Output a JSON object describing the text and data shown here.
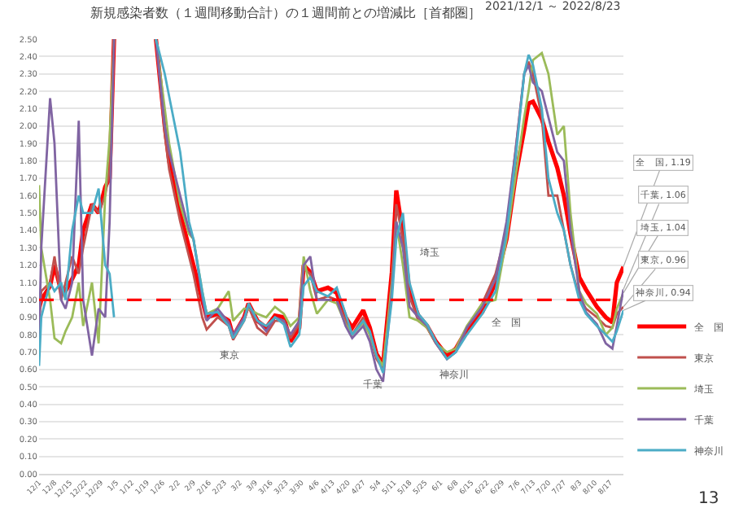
{
  "chart_data": {
    "type": "line",
    "title": "新規感染者数（１週間移動合計）の１週間前との増減比［首都圏］",
    "subtitle": "2021/12/1 ～ 2022/8/23",
    "x": [
      "2021-12-01",
      "2021-12-02",
      "2021-12-06",
      "2021-12-08",
      "2021-12-11",
      "2021-12-13",
      "2021-12-16",
      "2021-12-19",
      "2021-12-21",
      "2021-12-25",
      "2021-12-28",
      "2021-12-31",
      "2022-01-02",
      "2022-01-04",
      "2022-01-14",
      "2022-01-23",
      "2022-01-27",
      "2022-01-29",
      "2022-02-03",
      "2022-02-07",
      "2022-02-09",
      "2022-02-13",
      "2022-02-15",
      "2022-02-20",
      "2022-02-25",
      "2022-02-27",
      "2022-03-04",
      "2022-03-06",
      "2022-03-10",
      "2022-03-14",
      "2022-03-18",
      "2022-03-22",
      "2022-03-25",
      "2022-03-29",
      "2022-03-31",
      "2022-04-03",
      "2022-04-06",
      "2022-04-11",
      "2022-04-15",
      "2022-04-19",
      "2022-04-22",
      "2022-04-27",
      "2022-04-30",
      "2022-05-03",
      "2022-05-06",
      "2022-05-10",
      "2022-05-12",
      "2022-05-15",
      "2022-05-18",
      "2022-05-22",
      "2022-05-26",
      "2022-05-30",
      "2022-06-04",
      "2022-06-08",
      "2022-06-13",
      "2022-06-20",
      "2022-06-26",
      "2022-07-01",
      "2022-07-05",
      "2022-07-09",
      "2022-07-11",
      "2022-07-13",
      "2022-07-17",
      "2022-07-20",
      "2022-07-24",
      "2022-07-27",
      "2022-07-30",
      "2022-08-03",
      "2022-08-06",
      "2022-08-11",
      "2022-08-15",
      "2022-08-18",
      "2022-08-20",
      "2022-08-23"
    ],
    "xlim": [
      "2021-12-01",
      "2022-08-23"
    ],
    "xticks": [
      {
        "value": "2021-12-01",
        "label": "12/1"
      },
      {
        "value": "2021-12-08",
        "label": "12/8"
      },
      {
        "value": "2021-12-15",
        "label": "12/15"
      },
      {
        "value": "2021-12-22",
        "label": "12/22"
      },
      {
        "value": "2021-12-29",
        "label": "12/29"
      },
      {
        "value": "2022-01-05",
        "label": "1/5"
      },
      {
        "value": "2022-01-12",
        "label": "1/12"
      },
      {
        "value": "2022-01-19",
        "label": "1/19"
      },
      {
        "value": "2022-01-26",
        "label": "1/26"
      },
      {
        "value": "2022-02-02",
        "label": "2/2"
      },
      {
        "value": "2022-02-09",
        "label": "2/9"
      },
      {
        "value": "2022-02-16",
        "label": "2/16"
      },
      {
        "value": "2022-02-23",
        "label": "2/23"
      },
      {
        "value": "2022-03-02",
        "label": "3/2"
      },
      {
        "value": "2022-03-09",
        "label": "3/9"
      },
      {
        "value": "2022-03-16",
        "label": "3/16"
      },
      {
        "value": "2022-03-23",
        "label": "3/23"
      },
      {
        "value": "2022-03-30",
        "label": "3/30"
      },
      {
        "value": "2022-04-06",
        "label": "4/6"
      },
      {
        "value": "2022-04-13",
        "label": "4/13"
      },
      {
        "value": "2022-04-20",
        "label": "4/20"
      },
      {
        "value": "2022-04-27",
        "label": "4/27"
      },
      {
        "value": "2022-05-04",
        "label": "5/4"
      },
      {
        "value": "2022-05-11",
        "label": "5/11"
      },
      {
        "value": "2022-05-18",
        "label": "5/18"
      },
      {
        "value": "2022-05-25",
        "label": "5/25"
      },
      {
        "value": "2022-06-01",
        "label": "6/1"
      },
      {
        "value": "2022-06-08",
        "label": "6/8"
      },
      {
        "value": "2022-06-15",
        "label": "6/15"
      },
      {
        "value": "2022-06-22",
        "label": "6/22"
      },
      {
        "value": "2022-06-29",
        "label": "6/29"
      },
      {
        "value": "2022-07-06",
        "label": "7/6"
      },
      {
        "value": "2022-07-13",
        "label": "7/13"
      },
      {
        "value": "2022-07-20",
        "label": "7/20"
      },
      {
        "value": "2022-07-27",
        "label": "7/27"
      },
      {
        "value": "2022-08-03",
        "label": "8/3"
      },
      {
        "value": "2022-08-10",
        "label": "8/10"
      },
      {
        "value": "2022-08-17",
        "label": "8/17"
      }
    ],
    "ylim": [
      0,
      2.5
    ],
    "yticks": [
      {
        "value": 0,
        "label": "0.00"
      },
      {
        "value": 0.1,
        "label": "0.10"
      },
      {
        "value": 0.2,
        "label": "0.20"
      },
      {
        "value": 0.3,
        "label": "0.30"
      },
      {
        "value": 0.4,
        "label": "0.40"
      },
      {
        "value": 0.5,
        "label": "0.50"
      },
      {
        "value": 0.6,
        "label": "0.60"
      },
      {
        "value": 0.7,
        "label": "0.70"
      },
      {
        "value": 0.8,
        "label": "0.80"
      },
      {
        "value": 0.9,
        "label": "0.90"
      },
      {
        "value": 1,
        "label": "1.00"
      },
      {
        "value": 1.1,
        "label": "1.10"
      },
      {
        "value": 1.2,
        "label": "1.20"
      },
      {
        "value": 1.3,
        "label": "1.30"
      },
      {
        "value": 1.4,
        "label": "1.40"
      },
      {
        "value": 1.5,
        "label": "1.50"
      },
      {
        "value": 1.6,
        "label": "1.60"
      },
      {
        "value": 1.7,
        "label": "1.70"
      },
      {
        "value": 1.8,
        "label": "1.80"
      },
      {
        "value": 1.9,
        "label": "1.90"
      },
      {
        "value": 2,
        "label": "2.00"
      },
      {
        "value": 2.1,
        "label": "2.10"
      },
      {
        "value": 2.2,
        "label": "2.20"
      },
      {
        "value": 2.3,
        "label": "2.30"
      },
      {
        "value": 2.4,
        "label": "2.40"
      },
      {
        "value": 2.5,
        "label": "2.50"
      }
    ],
    "grid": "y",
    "legend": "bottom right",
    "series": [
      {
        "name": "全　国",
        "color": "#ff0000",
        "values": [
          0.95,
          1.0,
          1.08,
          1.2,
          1.05,
          1.05,
          1.12,
          1.2,
          1.4,
          1.55,
          1.5,
          1.65,
          1.7,
          2.5,
          null,
          2.5,
          2.0,
          1.8,
          1.5,
          1.3,
          1.2,
          1.0,
          0.9,
          0.92,
          0.88,
          0.79,
          0.9,
          0.98,
          0.88,
          0.84,
          0.91,
          0.9,
          0.76,
          0.84,
          1.2,
          1.16,
          1.05,
          1.07,
          1.04,
          0.9,
          0.84,
          0.94,
          0.84,
          0.69,
          0.63,
          1.16,
          1.63,
          1.38,
          1.04,
          0.91,
          0.85,
          0.76,
          0.68,
          0.72,
          0.83,
          0.93,
          1.1,
          1.35,
          1.7,
          1.98,
          2.13,
          2.14,
          2.04,
          1.91,
          1.76,
          1.6,
          1.38,
          1.13,
          1.06,
          0.96,
          0.9,
          0.87,
          1.1,
          1.19
        ]
      },
      {
        "name": "東京",
        "color": "#c0504d",
        "values": [
          0.85,
          1.05,
          1.1,
          1.25,
          1.0,
          1.1,
          1.25,
          1.15,
          1.3,
          1.55,
          1.5,
          1.6,
          1.75,
          2.5,
          null,
          2.5,
          1.95,
          1.75,
          1.45,
          1.25,
          1.15,
          0.9,
          0.83,
          0.9,
          0.85,
          0.77,
          0.88,
          0.96,
          0.84,
          0.8,
          0.88,
          0.88,
          0.78,
          0.86,
          1.18,
          1.15,
          1.0,
          1.02,
          1.0,
          0.88,
          0.8,
          0.9,
          0.8,
          0.66,
          0.6,
          1.1,
          1.55,
          1.35,
          1.02,
          0.88,
          0.84,
          0.75,
          0.66,
          0.7,
          0.84,
          0.98,
          1.15,
          1.4,
          1.85,
          2.3,
          2.37,
          2.3,
          2.05,
          1.6,
          1.6,
          1.4,
          1.2,
          1.02,
          0.95,
          0.9,
          0.85,
          0.84,
          0.92,
          0.96
        ]
      },
      {
        "name": "埼玉",
        "color": "#9bbb59",
        "values": [
          1.66,
          1.3,
          1.0,
          0.78,
          0.75,
          0.82,
          0.9,
          1.1,
          0.85,
          1.1,
          0.75,
          1.6,
          1.93,
          2.5,
          null,
          2.5,
          2.1,
          1.9,
          1.55,
          1.38,
          1.35,
          1.05,
          0.92,
          0.95,
          1.05,
          0.88,
          0.95,
          0.95,
          0.92,
          0.9,
          0.96,
          0.92,
          0.85,
          0.9,
          1.25,
          1.05,
          0.92,
          1.0,
          0.98,
          0.86,
          0.8,
          0.87,
          0.8,
          0.68,
          0.62,
          1.1,
          1.45,
          1.2,
          0.9,
          0.88,
          0.84,
          0.75,
          0.7,
          0.72,
          0.85,
          0.98,
          1.0,
          1.35,
          1.7,
          2.05,
          2.2,
          2.38,
          2.42,
          2.3,
          1.95,
          2.0,
          1.5,
          1.05,
          0.98,
          0.92,
          0.8,
          0.84,
          0.95,
          1.04
        ]
      },
      {
        "name": "千葉",
        "color": "#8064a2",
        "values": [
          0.75,
          1.3,
          2.16,
          1.9,
          1.0,
          0.95,
          1.1,
          2.03,
          1.0,
          0.68,
          0.95,
          0.9,
          1.45,
          2.5,
          null,
          2.5,
          2.0,
          1.85,
          1.6,
          1.4,
          1.35,
          1.02,
          0.88,
          0.95,
          0.87,
          0.8,
          0.9,
          0.97,
          0.88,
          0.82,
          0.9,
          0.88,
          0.8,
          0.88,
          1.2,
          1.25,
          1.0,
          1.0,
          1.0,
          0.85,
          0.78,
          0.85,
          0.76,
          0.6,
          0.53,
          1.05,
          1.45,
          1.3,
          0.96,
          0.9,
          0.85,
          0.75,
          0.66,
          0.7,
          0.84,
          0.96,
          1.12,
          1.45,
          1.85,
          2.3,
          2.35,
          2.25,
          2.2,
          2.05,
          1.85,
          1.8,
          1.4,
          1.05,
          0.93,
          0.86,
          0.75,
          0.72,
          0.85,
          1.06
        ]
      },
      {
        "name": "神奈川",
        "color": "#4bacc6",
        "values": [
          0.62,
          0.9,
          1.1,
          1.05,
          1.1,
          1.0,
          1.4,
          1.6,
          1.5,
          1.5,
          1.64,
          1.2,
          1.15,
          0.9,
          null,
          2.5,
          2.3,
          2.17,
          1.85,
          1.45,
          1.35,
          1.05,
          0.92,
          0.93,
          0.85,
          0.78,
          0.88,
          0.98,
          0.88,
          0.85,
          0.9,
          0.86,
          0.73,
          0.8,
          1.08,
          1.13,
          1.05,
          1.02,
          1.07,
          0.92,
          0.8,
          0.88,
          0.82,
          0.68,
          0.58,
          1.0,
          1.35,
          1.5,
          1.1,
          0.92,
          0.86,
          0.76,
          0.66,
          0.7,
          0.8,
          0.92,
          1.05,
          1.38,
          1.8,
          2.3,
          2.41,
          2.35,
          2.1,
          1.7,
          1.5,
          1.4,
          1.2,
          1.0,
          0.92,
          0.85,
          0.8,
          0.76,
          0.82,
          0.94
        ]
      }
    ],
    "ref_lines": [
      {
        "axis": "y",
        "value": 1,
        "color": "#ff0000",
        "line_style": "dashed"
      }
    ],
    "annotations": [
      "東京",
      "千葉",
      "埼玉",
      "神奈川",
      "全　国",
      {
        "text": "全　国, 1.19",
        "x": "2022-08-23",
        "y": 1.19
      },
      {
        "text": "千葉, 1.06",
        "x": "2022-08-23",
        "y": 1.06
      },
      {
        "text": "埼玉, 1.04",
        "x": "2022-08-23",
        "y": 1.04
      },
      {
        "text": "東京, 0.96",
        "x": "2022-08-23",
        "y": 0.96
      },
      {
        "text": "神奈川, 0.94",
        "x": "2022-08-23",
        "y": 0.94
      },
      "13"
    ]
  }
}
